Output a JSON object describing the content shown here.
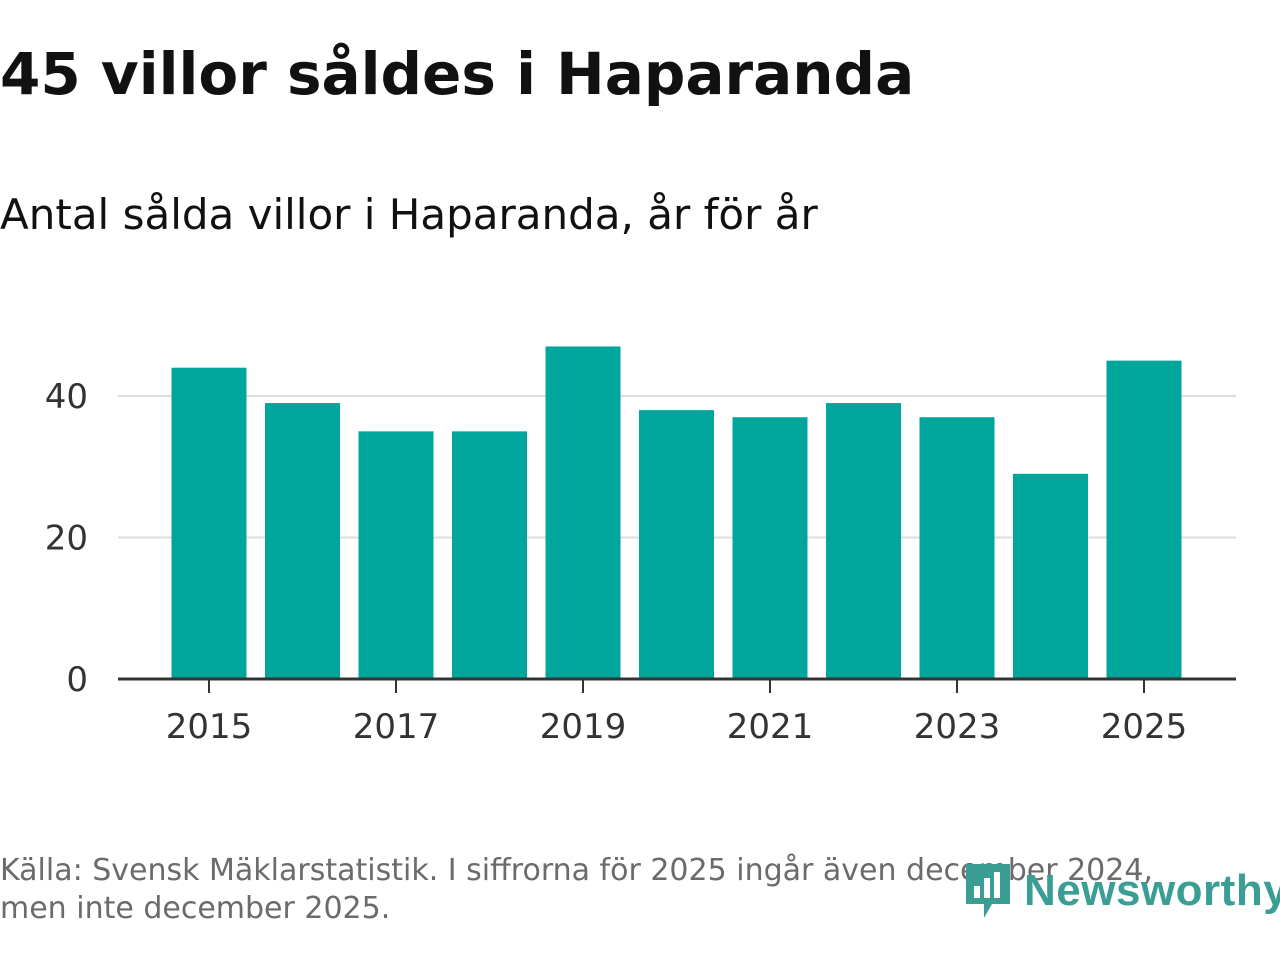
{
  "header": {
    "title": "45 villor såldes i Haparanda",
    "subtitle": "Antal sålda villor i Haparanda, år för år"
  },
  "footer": {
    "source_line1": "Källa: Svensk Mäklarstatistik. I siffrorna för 2025 ingår även december 2024,",
    "source_line2": "men inte december 2025."
  },
  "logo": {
    "text": "Newsworthy",
    "icon": "newsworthy-logo-icon"
  },
  "colors": {
    "bar": "#00a59b",
    "grid": "#dddddd",
    "axis": "#333333",
    "text": "#333333",
    "logo": "#3a9e94"
  },
  "chart_data": {
    "type": "bar",
    "title": "Antal sålda villor i Haparanda, år för år",
    "xlabel": "",
    "ylabel": "",
    "categories": [
      2015,
      2016,
      2017,
      2018,
      2019,
      2020,
      2021,
      2022,
      2023,
      2024,
      2025
    ],
    "values": [
      44,
      39,
      35,
      35,
      47,
      38,
      37,
      39,
      37,
      29,
      45
    ],
    "ylim": [
      0,
      50
    ],
    "yticks": [
      0,
      20,
      40
    ],
    "xticks": [
      2015,
      2017,
      2019,
      2021,
      2023,
      2025
    ],
    "grid": true
  }
}
